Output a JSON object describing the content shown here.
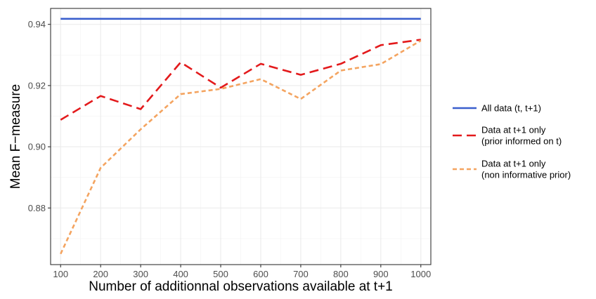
{
  "chart_data": {
    "type": "line",
    "xlabel": "Number of additionnal observations available at t+1",
    "ylabel": "Mean F−measure",
    "x": [
      100,
      200,
      300,
      400,
      500,
      600,
      700,
      800,
      900,
      1000
    ],
    "x_tick_labels": [
      "100",
      "200",
      "300",
      "400",
      "500",
      "600",
      "700",
      "800",
      "900",
      "1000"
    ],
    "xlim": [
      75,
      1025
    ],
    "y_ticks": [
      0.88,
      0.9,
      0.92,
      0.94
    ],
    "y_tick_labels": [
      "0.88",
      "0.90",
      "0.92",
      "0.94"
    ],
    "ylim": [
      0.8615,
      0.9452
    ],
    "grid": true,
    "legend_position": "right",
    "series": [
      {
        "name": "All data (t, t+1)",
        "name_lines": [
          "All data (t, t+1)"
        ],
        "color": "#3a5fcd",
        "style": "solid",
        "values": [
          0.9418,
          0.9418,
          0.9418,
          0.9418,
          0.9418,
          0.9418,
          0.9418,
          0.9418,
          0.9418,
          0.9418
        ]
      },
      {
        "name": "Data at t+1 only (prior informed on t)",
        "name_lines": [
          "Data at t+1 only",
          "(prior informed on t)"
        ],
        "color": "#e31a1c",
        "style": "dashed",
        "values": [
          0.9088,
          0.9166,
          0.9123,
          0.9276,
          0.9193,
          0.9271,
          0.9235,
          0.9271,
          0.9332,
          0.935
        ]
      },
      {
        "name": "Data at t+1 only (non informative prior)",
        "name_lines": [
          "Data at t+1 only",
          "(non informative prior)"
        ],
        "color": "#f4a460",
        "style": "dotted",
        "values": [
          0.865,
          0.8931,
          0.9057,
          0.9172,
          0.9189,
          0.9221,
          0.9156,
          0.9249,
          0.927,
          0.9347
        ]
      }
    ]
  }
}
